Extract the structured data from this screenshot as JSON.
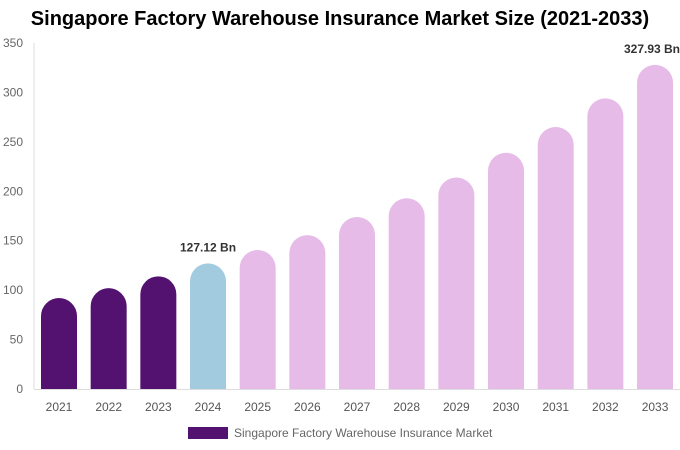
{
  "chart_data": {
    "type": "bar",
    "title": "Singapore Factory Warehouse Insurance Market Size (2021-2033)",
    "categories": [
      "2021",
      "2022",
      "2023",
      "2024",
      "2025",
      "2026",
      "2027",
      "2028",
      "2029",
      "2030",
      "2031",
      "2032",
      "2033"
    ],
    "series": [
      {
        "name": "Singapore Factory Warehouse Insurance Market",
        "values": [
          92,
          102,
          114,
          127.12,
          140.6,
          155.7,
          174,
          193,
          214,
          239,
          265,
          294,
          327.93
        ]
      }
    ],
    "data_labels": {
      "3": "127.12 Bn",
      "12": "327.93 Bn"
    },
    "ylim": [
      0,
      350
    ],
    "yticks": [
      0,
      50,
      100,
      150,
      200,
      250,
      300,
      350
    ],
    "grid": false,
    "legend": "bottom",
    "colors": {
      "historical": "#541270",
      "base_year": "#a3cbdf",
      "forecast": "#e6bbe8"
    }
  }
}
